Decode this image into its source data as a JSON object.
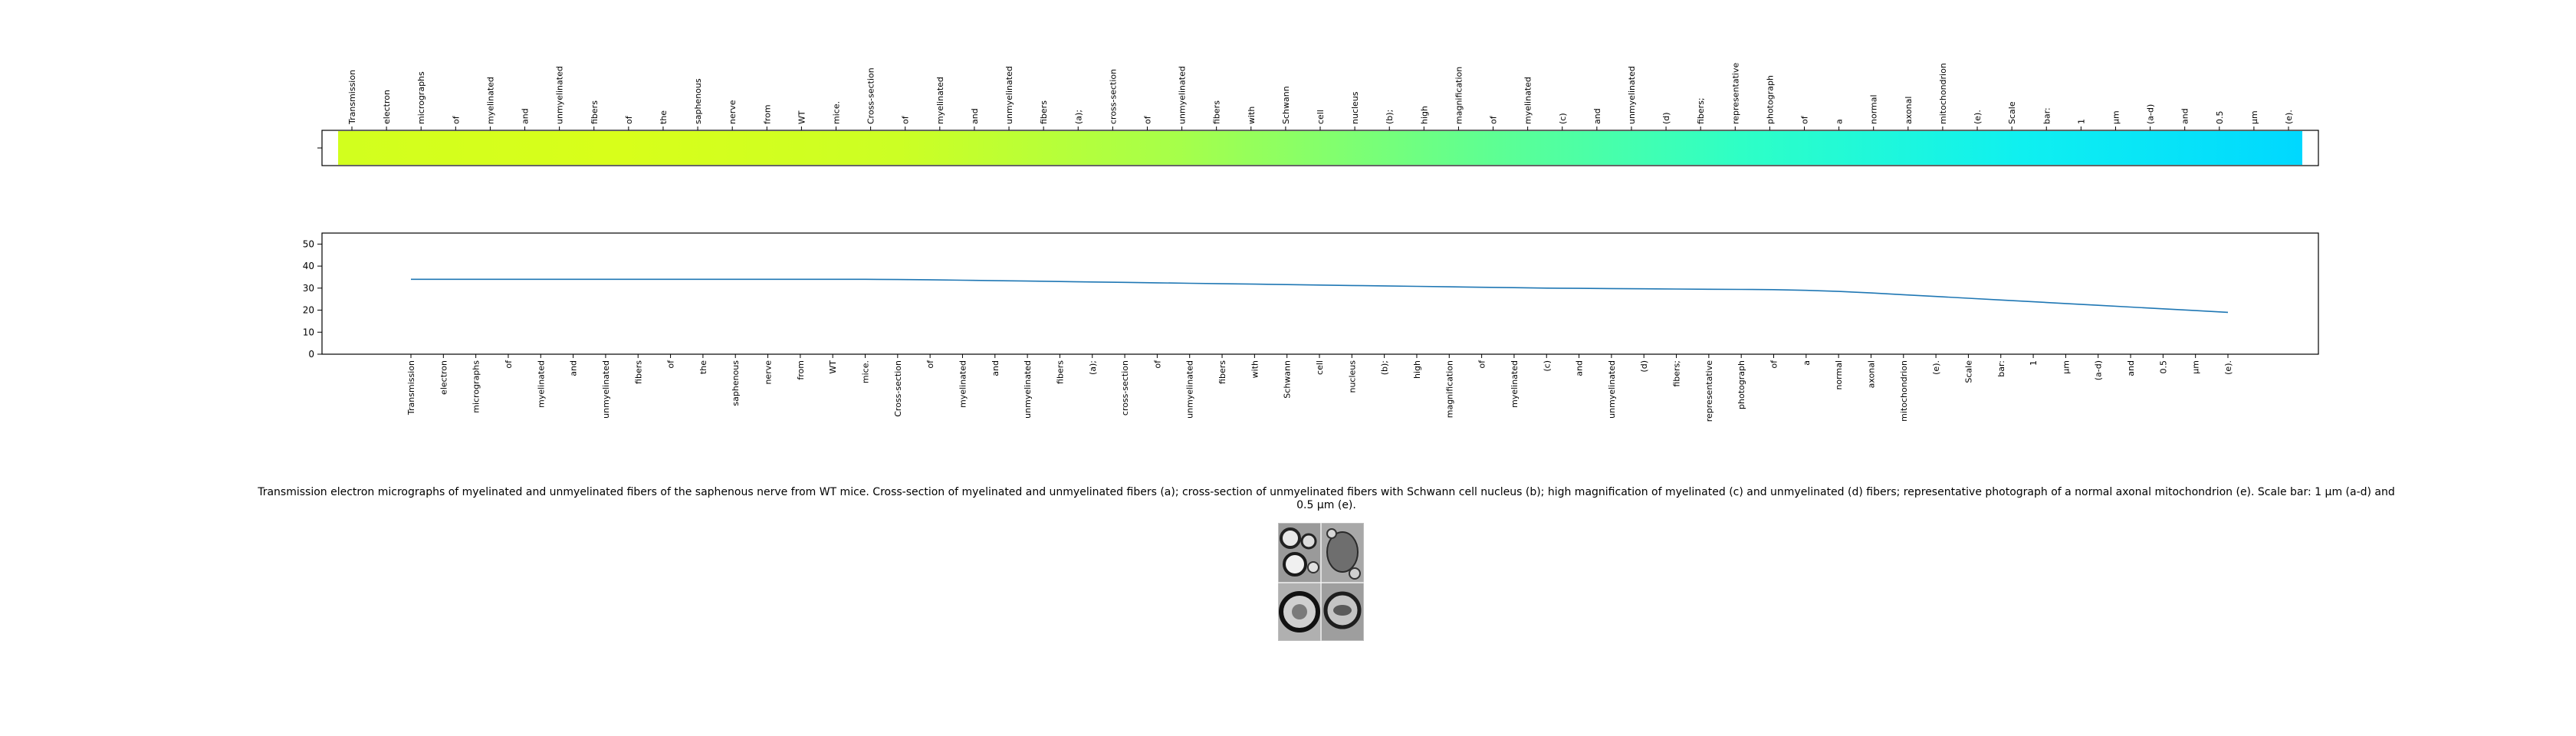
{
  "chart_data": [
    {
      "type": "heatmap",
      "tokens": [
        "Transmission",
        "electron",
        "micrographs",
        "of",
        "myelinated",
        "and",
        "unmyelinated",
        "fibers",
        "of",
        "the",
        "saphenous",
        "nerve",
        "from",
        "WT",
        "mice.",
        "Cross-section",
        "of",
        "myelinated",
        "and",
        "unmyelinated",
        "fibers",
        "(a);",
        "cross-section",
        "of",
        "unmyelinated",
        "fibers",
        "with",
        "Schwann",
        "cell",
        "nucleus",
        "(b);",
        "high",
        "magnification",
        "of",
        "myelinated",
        "(c)",
        "and",
        "unmyelinated",
        "(d)",
        "fibers;",
        "representative",
        "photograph",
        "of",
        "a",
        "normal",
        "axonal",
        "mitochondrion",
        "(e).",
        "Scale",
        "bar:",
        "1",
        "μm",
        "(a-d)",
        "and",
        "0.5",
        "μm",
        "(e)."
      ],
      "colormap": [
        "#d2ff1e",
        "#d8ff1a",
        "#ccff24",
        "#a6ff4a",
        "#64ff8c",
        "#2effc6",
        "#0ff0f0",
        "#00d8ff"
      ],
      "grid": false
    },
    {
      "type": "line",
      "x": [
        "Transmission",
        "electron",
        "micrographs",
        "of",
        "myelinated",
        "and",
        "unmyelinated",
        "fibers",
        "of",
        "the",
        "saphenous",
        "nerve",
        "from",
        "WT",
        "mice.",
        "Cross-section",
        "of",
        "myelinated",
        "and",
        "unmyelinated",
        "fibers",
        "(a);",
        "cross-section",
        "of",
        "unmyelinated",
        "fibers",
        "with",
        "Schwann",
        "cell",
        "nucleus",
        "(b);",
        "high",
        "magnification",
        "of",
        "myelinated",
        "(c)",
        "and",
        "unmyelinated",
        "(d)",
        "fibers;",
        "representative",
        "photograph",
        "of",
        "a",
        "normal",
        "axonal",
        "mitochondrion",
        "(e).",
        "Scale",
        "bar:",
        "1",
        "μm",
        "(a-d)",
        "and",
        "0.5",
        "μm",
        "(e)."
      ],
      "series": [
        {
          "values": [
            34.0,
            34.0,
            34.0,
            34.0,
            34.0,
            34.0,
            34.0,
            34.0,
            34.0,
            34.0,
            34.0,
            34.0,
            34.0,
            34.0,
            34.0,
            33.9,
            33.8,
            33.6,
            33.4,
            33.2,
            33.0,
            32.8,
            32.6,
            32.4,
            32.2,
            32.0,
            31.8,
            31.6,
            31.4,
            31.2,
            31.0,
            30.8,
            30.6,
            30.4,
            30.2,
            30.0,
            29.9,
            29.8,
            29.7,
            29.6,
            29.5,
            29.4,
            29.3,
            29.0,
            28.5,
            27.8,
            27.0,
            26.2,
            25.4,
            24.6,
            23.8,
            23.0,
            22.2,
            21.4,
            20.6,
            19.8,
            19.0
          ],
          "color": "#1f77b4"
        }
      ],
      "ylim": [
        0,
        55
      ],
      "yticks": [
        "0",
        "10",
        "20",
        "30",
        "40",
        "50"
      ],
      "grid": false
    }
  ],
  "caption": "Transmission electron micrographs of myelinated and unmyelinated fibers of the saphenous nerve from WT mice. Cross-section of myelinated and unmyelinated fibers (a); cross-section of unmyelinated fibers with Schwann cell nucleus (b); high magnification of myelinated (c) and unmyelinated (d) fibers; representative photograph of a normal axonal mitochondrion (e). Scale bar: 1 μm (a-d) and 0.5 μm (e).",
  "thumbnail_icon": "micrograph-thumbnail"
}
